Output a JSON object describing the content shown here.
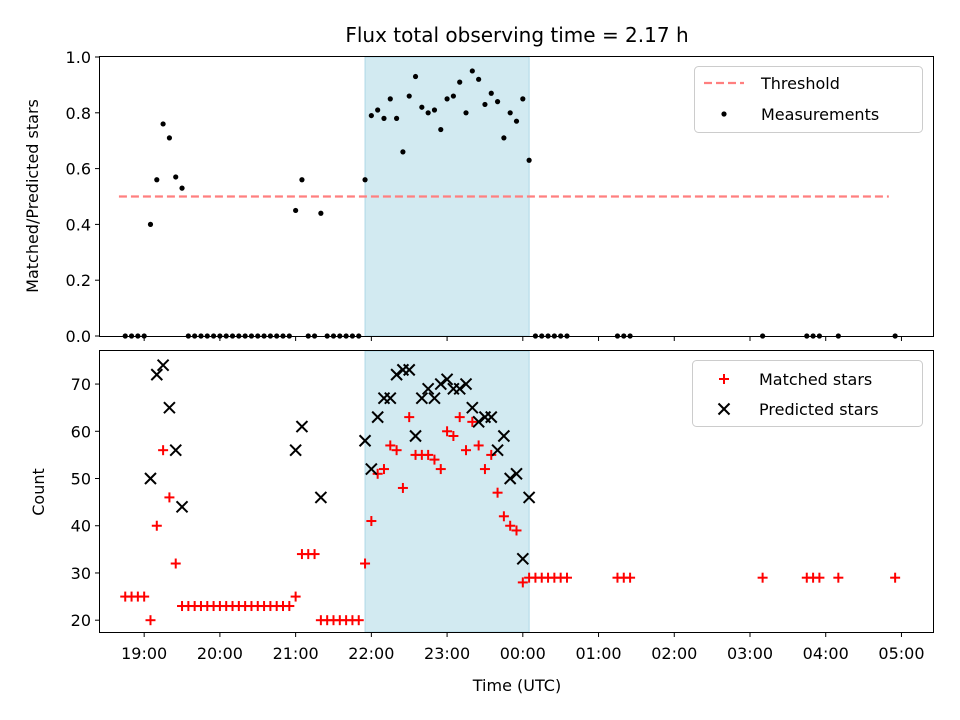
{
  "chart_data": {
    "title": "Flux total observing time = 2.17 h",
    "xlabel": "Time (UTC)",
    "x_axis": {
      "type": "time",
      "range": [
        "18:25",
        "05:25"
      ],
      "ticks": [
        "19:00",
        "20:00",
        "21:00",
        "22:00",
        "23:00",
        "00:00",
        "01:00",
        "02:00",
        "03:00",
        "04:00",
        "05:00"
      ]
    },
    "observing_window": {
      "start": "21:55",
      "end": "00:05",
      "color": "#add8e6"
    },
    "panels": [
      {
        "type": "scatter",
        "ylabel": "Matched/Predicted stars",
        "ylim": [
          0,
          1.0
        ],
        "yticks": [
          "0.0",
          "0.2",
          "0.4",
          "0.6",
          "0.8",
          "1.0"
        ],
        "legend_position": "top-right",
        "threshold": {
          "name": "Threshold",
          "value": 0.5,
          "x_range": [
            "18:40",
            "04:50"
          ],
          "color": "#ff7f7f"
        },
        "series": [
          {
            "name": "Measurements",
            "marker": "dot",
            "color": "#000000",
            "points": [
              [
                "18:45",
                0
              ],
              [
                "18:50",
                0
              ],
              [
                "18:55",
                0
              ],
              [
                "19:00",
                0
              ],
              [
                "19:05",
                0.4
              ],
              [
                "19:10",
                0.56
              ],
              [
                "19:15",
                0.76
              ],
              [
                "19:20",
                0.71
              ],
              [
                "19:25",
                0.57
              ],
              [
                "19:30",
                0.53
              ],
              [
                "19:35",
                0
              ],
              [
                "19:40",
                0
              ],
              [
                "19:45",
                0
              ],
              [
                "19:50",
                0
              ],
              [
                "19:55",
                0
              ],
              [
                "20:00",
                0
              ],
              [
                "20:05",
                0
              ],
              [
                "20:10",
                0
              ],
              [
                "20:15",
                0
              ],
              [
                "20:20",
                0
              ],
              [
                "20:25",
                0
              ],
              [
                "20:30",
                0
              ],
              [
                "20:35",
                0
              ],
              [
                "20:40",
                0
              ],
              [
                "20:45",
                0
              ],
              [
                "20:50",
                0
              ],
              [
                "20:55",
                0
              ],
              [
                "21:00",
                0.45
              ],
              [
                "21:05",
                0.56
              ],
              [
                "21:10",
                0
              ],
              [
                "21:15",
                0
              ],
              [
                "21:20",
                0.44
              ],
              [
                "21:25",
                0
              ],
              [
                "21:30",
                0
              ],
              [
                "21:35",
                0
              ],
              [
                "21:40",
                0
              ],
              [
                "21:45",
                0
              ],
              [
                "21:50",
                0
              ],
              [
                "21:55",
                0.56
              ],
              [
                "22:00",
                0.79
              ],
              [
                "22:05",
                0.81
              ],
              [
                "22:10",
                0.78
              ],
              [
                "22:15",
                0.85
              ],
              [
                "22:20",
                0.78
              ],
              [
                "22:25",
                0.66
              ],
              [
                "22:30",
                0.86
              ],
              [
                "22:35",
                0.93
              ],
              [
                "22:40",
                0.82
              ],
              [
                "22:45",
                0.8
              ],
              [
                "22:50",
                0.81
              ],
              [
                "22:55",
                0.74
              ],
              [
                "23:00",
                0.85
              ],
              [
                "23:05",
                0.86
              ],
              [
                "23:10",
                0.91
              ],
              [
                "23:15",
                0.8
              ],
              [
                "23:20",
                0.95
              ],
              [
                "23:25",
                0.92
              ],
              [
                "23:30",
                0.83
              ],
              [
                "23:35",
                0.87
              ],
              [
                "23:40",
                0.84
              ],
              [
                "23:45",
                0.71
              ],
              [
                "23:50",
                0.8
              ],
              [
                "23:55",
                0.77
              ],
              [
                "00:00",
                0.85
              ],
              [
                "00:05",
                0.63
              ],
              [
                "00:10",
                0
              ],
              [
                "00:15",
                0
              ],
              [
                "00:20",
                0
              ],
              [
                "00:25",
                0
              ],
              [
                "00:30",
                0
              ],
              [
                "00:35",
                0
              ],
              [
                "01:15",
                0
              ],
              [
                "01:20",
                0
              ],
              [
                "01:25",
                0
              ],
              [
                "03:10",
                0
              ],
              [
                "03:45",
                0
              ],
              [
                "03:50",
                0
              ],
              [
                "03:55",
                0
              ],
              [
                "04:10",
                0
              ],
              [
                "04:55",
                0
              ]
            ]
          }
        ]
      },
      {
        "type": "scatter",
        "ylabel": "Count",
        "ylim": [
          17.5,
          77
        ],
        "yticks": [
          "20",
          "30",
          "40",
          "50",
          "60",
          "70"
        ],
        "legend_position": "top-right",
        "series": [
          {
            "name": "Matched stars",
            "marker": "plus",
            "color": "#ff0000",
            "points": [
              [
                "18:45",
                25
              ],
              [
                "18:50",
                25
              ],
              [
                "18:55",
                25
              ],
              [
                "19:00",
                25
              ],
              [
                "19:05",
                20
              ],
              [
                "19:10",
                40
              ],
              [
                "19:15",
                56
              ],
              [
                "19:20",
                46
              ],
              [
                "19:25",
                32
              ],
              [
                "19:30",
                23
              ],
              [
                "19:35",
                23
              ],
              [
                "19:40",
                23
              ],
              [
                "19:45",
                23
              ],
              [
                "19:50",
                23
              ],
              [
                "19:55",
                23
              ],
              [
                "20:00",
                23
              ],
              [
                "20:05",
                23
              ],
              [
                "20:10",
                23
              ],
              [
                "20:15",
                23
              ],
              [
                "20:20",
                23
              ],
              [
                "20:25",
                23
              ],
              [
                "20:30",
                23
              ],
              [
                "20:35",
                23
              ],
              [
                "20:40",
                23
              ],
              [
                "20:45",
                23
              ],
              [
                "20:50",
                23
              ],
              [
                "20:55",
                23
              ],
              [
                "21:00",
                25
              ],
              [
                "21:05",
                34
              ],
              [
                "21:10",
                34
              ],
              [
                "21:15",
                34
              ],
              [
                "21:20",
                20
              ],
              [
                "21:25",
                20
              ],
              [
                "21:30",
                20
              ],
              [
                "21:35",
                20
              ],
              [
                "21:40",
                20
              ],
              [
                "21:45",
                20
              ],
              [
                "21:50",
                20
              ],
              [
                "21:55",
                32
              ],
              [
                "22:00",
                41
              ],
              [
                "22:05",
                51
              ],
              [
                "22:10",
                52
              ],
              [
                "22:15",
                57
              ],
              [
                "22:20",
                56
              ],
              [
                "22:25",
                48
              ],
              [
                "22:30",
                63
              ],
              [
                "22:35",
                55
              ],
              [
                "22:40",
                55
              ],
              [
                "22:45",
                55
              ],
              [
                "22:50",
                54
              ],
              [
                "22:55",
                52
              ],
              [
                "23:00",
                60
              ],
              [
                "23:05",
                59
              ],
              [
                "23:10",
                63
              ],
              [
                "23:15",
                56
              ],
              [
                "23:20",
                62
              ],
              [
                "23:25",
                57
              ],
              [
                "23:30",
                52
              ],
              [
                "23:35",
                55
              ],
              [
                "23:40",
                47
              ],
              [
                "23:45",
                42
              ],
              [
                "23:50",
                40
              ],
              [
                "23:55",
                39
              ],
              [
                "00:00",
                28
              ],
              [
                "00:05",
                29
              ],
              [
                "00:10",
                29
              ],
              [
                "00:15",
                29
              ],
              [
                "00:20",
                29
              ],
              [
                "00:25",
                29
              ],
              [
                "00:30",
                29
              ],
              [
                "00:35",
                29
              ],
              [
                "01:15",
                29
              ],
              [
                "01:20",
                29
              ],
              [
                "01:25",
                29
              ],
              [
                "03:10",
                29
              ],
              [
                "03:45",
                29
              ],
              [
                "03:50",
                29
              ],
              [
                "03:55",
                29
              ],
              [
                "04:10",
                29
              ],
              [
                "04:55",
                29
              ]
            ]
          },
          {
            "name": "Predicted stars",
            "marker": "x",
            "color": "#000000",
            "points": [
              [
                "19:05",
                50
              ],
              [
                "19:10",
                72
              ],
              [
                "19:15",
                74
              ],
              [
                "19:20",
                65
              ],
              [
                "19:25",
                56
              ],
              [
                "19:30",
                44
              ],
              [
                "21:00",
                56
              ],
              [
                "21:05",
                61
              ],
              [
                "21:20",
                46
              ],
              [
                "21:55",
                58
              ],
              [
                "22:00",
                52
              ],
              [
                "22:05",
                63
              ],
              [
                "22:10",
                67
              ],
              [
                "22:15",
                67
              ],
              [
                "22:20",
                72
              ],
              [
                "22:25",
                73
              ],
              [
                "22:30",
                73
              ],
              [
                "22:35",
                59
              ],
              [
                "22:40",
                67
              ],
              [
                "22:45",
                69
              ],
              [
                "22:50",
                67
              ],
              [
                "22:55",
                70
              ],
              [
                "23:00",
                71
              ],
              [
                "23:05",
                69
              ],
              [
                "23:10",
                69
              ],
              [
                "23:15",
                70
              ],
              [
                "23:20",
                65
              ],
              [
                "23:25",
                62
              ],
              [
                "23:30",
                63
              ],
              [
                "23:35",
                63
              ],
              [
                "23:40",
                56
              ],
              [
                "23:45",
                59
              ],
              [
                "23:50",
                50
              ],
              [
                "23:55",
                51
              ],
              [
                "00:00",
                33
              ],
              [
                "00:05",
                46
              ]
            ]
          }
        ]
      }
    ]
  }
}
